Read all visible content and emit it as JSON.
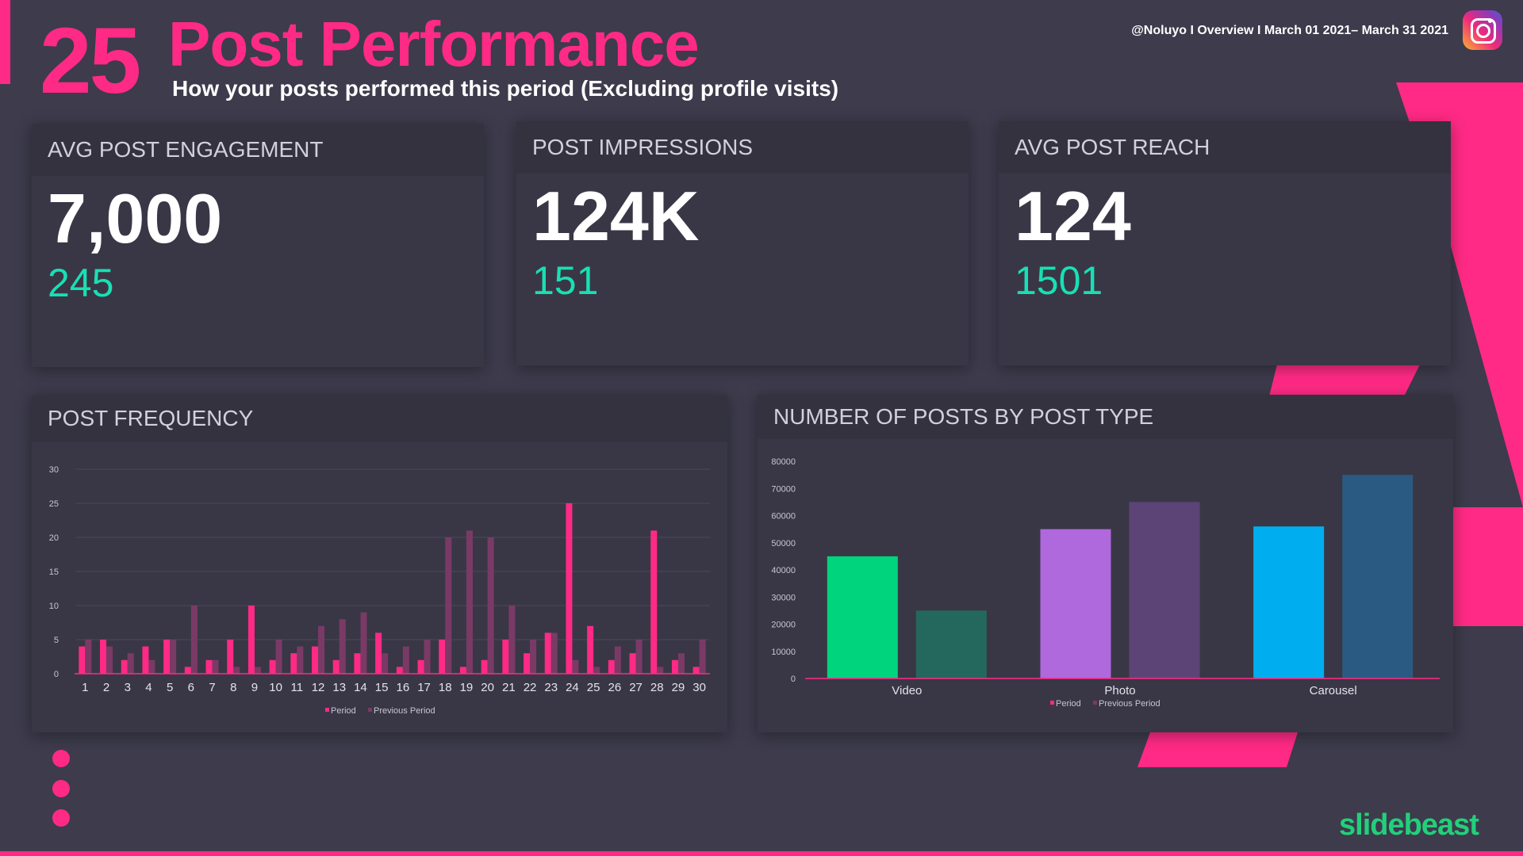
{
  "header": {
    "slide_number": "25",
    "title": "Post Performance",
    "subtitle": "How your posts performed this period (Excluding profile visits)",
    "meta": "@Noluyo I Overview I March 01 2021– March 31 2021",
    "icon": "instagram-icon"
  },
  "kpis": [
    {
      "label": "AVG POST ENGAGEMENT",
      "value": "7,000",
      "sub": "245"
    },
    {
      "label": "POST IMPRESSIONS",
      "value": "124K",
      "sub": "151"
    },
    {
      "label": "AVG POST REACH",
      "value": "124",
      "sub": "1501"
    }
  ],
  "frequency_card": {
    "title": "POST FREQUENCY"
  },
  "type_card": {
    "title": "NUMBER OF POSTS BY POST TYPE"
  },
  "logo": "slidebeast",
  "colors": {
    "accent": "#ff2a85",
    "teal": "#18e0b4",
    "background": "#3d3b4c",
    "logo": "#22d07a"
  },
  "chart_data": [
    {
      "type": "bar",
      "categories": [
        "1",
        "2",
        "3",
        "4",
        "5",
        "6",
        "7",
        "8",
        "9",
        "10",
        "11",
        "12",
        "13",
        "14",
        "15",
        "16",
        "17",
        "18",
        "19",
        "20",
        "21",
        "22",
        "23",
        "24",
        "25",
        "26",
        "27",
        "28",
        "29",
        "30"
      ],
      "series": [
        {
          "name": "Period",
          "values": [
            4,
            5,
            2,
            4,
            5,
            1,
            2,
            5,
            10,
            2,
            3,
            4,
            2,
            3,
            6,
            1,
            2,
            5,
            1,
            2,
            5,
            3,
            6,
            25,
            7,
            2,
            3,
            21,
            2,
            1
          ],
          "color": "#ff2a85"
        },
        {
          "name": "Previous Period",
          "values": [
            5,
            4,
            3,
            2,
            5,
            10,
            2,
            1,
            1,
            5,
            4,
            7,
            8,
            9,
            3,
            4,
            5,
            20,
            21,
            20,
            10,
            5,
            6,
            2,
            1,
            4,
            5,
            1,
            3,
            5
          ],
          "color": "#7a3a66"
        }
      ],
      "ylim": [
        0,
        30
      ],
      "yticks": [
        "30",
        "25",
        "20",
        "15",
        "10",
        "5",
        "0"
      ],
      "legend": "bottom-center"
    },
    {
      "type": "bar",
      "categories": [
        "Video",
        "Photo",
        "Carousel"
      ],
      "series": [
        {
          "name": "Period",
          "values": [
            45000,
            55000,
            56000
          ],
          "colors": [
            "#00d47d",
            "#b068dd",
            "#00aeef"
          ]
        },
        {
          "name": "Previous Period",
          "values": [
            25000,
            65000,
            75000
          ],
          "colors": [
            "#24685d",
            "#5c4476",
            "#2a5a82"
          ]
        }
      ],
      "ylim": [
        0,
        80000
      ],
      "yticks": [
        "80000",
        "70000",
        "60000",
        "50000",
        "40000",
        "30000",
        "20000",
        "10000",
        "0"
      ],
      "legend": "bottom-center"
    }
  ]
}
